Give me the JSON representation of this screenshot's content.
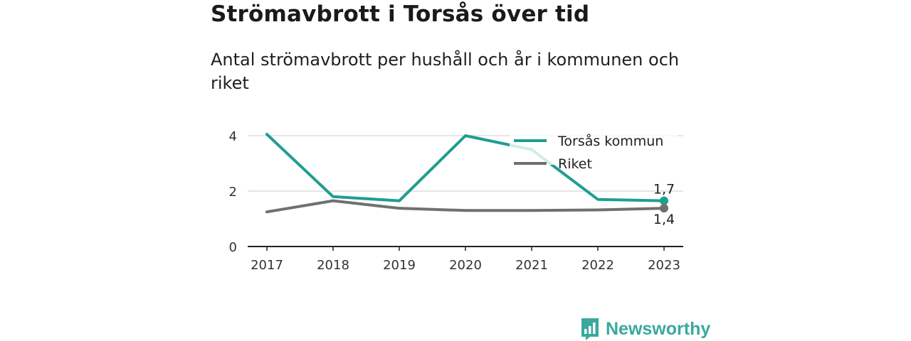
{
  "title": "Strömavbrott i Torsås över tid",
  "subtitle": "Antal strömavbrott per hushåll och år i kommunen och riket",
  "brand": {
    "name": "Newsworthy",
    "color": "#3aa89d",
    "icon": "bar-chart-speech-bubble-icon"
  },
  "chart_data": {
    "type": "line",
    "x": [
      "2017",
      "2018",
      "2019",
      "2020",
      "2021",
      "2022",
      "2023"
    ],
    "ylim": [
      0,
      4
    ],
    "yticks": [
      0,
      2,
      4
    ],
    "grid": true,
    "legend_position": "top-right",
    "series": [
      {
        "name": "Torsås kommun",
        "color": "#1f9e90",
        "values": [
          4.05,
          1.8,
          1.65,
          4.0,
          3.5,
          1.7,
          1.65
        ],
        "end_label": "1,7"
      },
      {
        "name": "Riket",
        "color": "#707070",
        "values": [
          1.25,
          1.65,
          1.38,
          1.3,
          1.3,
          1.32,
          1.38
        ],
        "end_label": "1,4"
      }
    ]
  }
}
